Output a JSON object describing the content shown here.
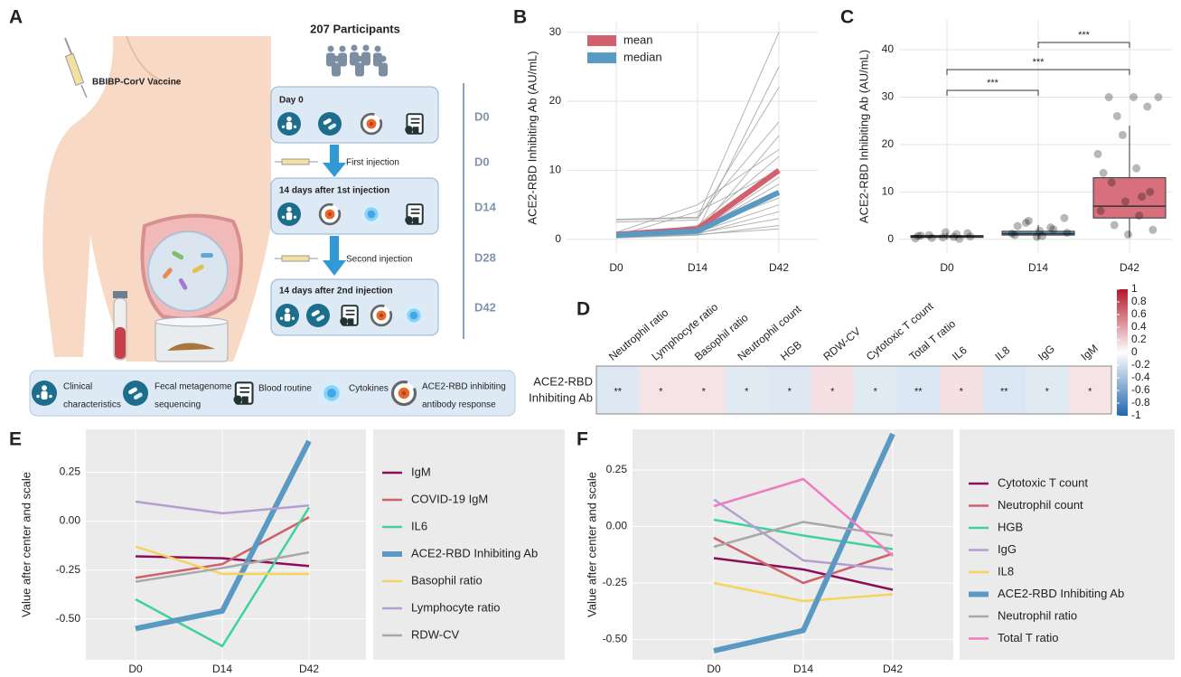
{
  "panel_labels": [
    "A",
    "B",
    "C",
    "D",
    "E",
    "F"
  ],
  "diagram": {
    "vaccine": "BBIBP-CorV Vaccine",
    "participants": "207 Participants",
    "steps": [
      "Day 0",
      "14 days after 1st injection",
      "14 days after 2nd injection"
    ],
    "injections": [
      "First injection",
      "Second injection"
    ],
    "timeline": [
      "D0",
      "D0",
      "D14",
      "D28",
      "D42"
    ],
    "legend": [
      [
        "Clinical",
        "characteristics"
      ],
      [
        "Fecal metagenome",
        "sequencing"
      ],
      [
        "Blood routine"
      ],
      [
        "Cytokines"
      ],
      [
        "ACE2-RBD inhibiting",
        "antibody response"
      ]
    ]
  },
  "chart_data": [
    {
      "type": "line",
      "ylabel": "ACE2-RBD Inhibiting Ab (AU/mL)",
      "categories": [
        "D0",
        "D14",
        "D42"
      ],
      "ylim": [
        -2,
        31.4
      ],
      "yticks": [
        0,
        10,
        20,
        30
      ],
      "grid": true,
      "legend": "top-left",
      "series": [
        {
          "color": "#a0a0a0",
          "width": 1,
          "values": [
            2.8,
            3.1,
            30
          ]
        },
        {
          "color": "#a0a0a0",
          "width": 1,
          "values": [
            2.5,
            2.8,
            22
          ]
        },
        {
          "color": "#a0a0a0",
          "width": 1,
          "values": [
            0.5,
            1,
            15
          ]
        },
        {
          "color": "#a0a0a0",
          "width": 1,
          "values": [
            0.3,
            0.8,
            4
          ]
        },
        {
          "color": "#a0a0a0",
          "width": 1,
          "values": [
            0.6,
            1.2,
            8
          ]
        },
        {
          "color": "#a0a0a0",
          "width": 1,
          "values": [
            0.4,
            2,
            12
          ]
        },
        {
          "color": "#a0a0a0",
          "width": 1,
          "values": [
            0.8,
            1.5,
            6
          ]
        },
        {
          "color": "#a0a0a0",
          "width": 1,
          "values": [
            0.2,
            0.6,
            2
          ]
        },
        {
          "color": "#a0a0a0",
          "width": 1,
          "values": [
            2.9,
            3.2,
            17
          ]
        },
        {
          "color": "#a0a0a0",
          "width": 1,
          "values": [
            0.5,
            4,
            10
          ]
        },
        {
          "color": "#a0a0a0",
          "width": 1,
          "values": [
            0.3,
            1,
            5
          ]
        },
        {
          "color": "#a0a0a0",
          "width": 1,
          "values": [
            0.6,
            1.4,
            25
          ]
        },
        {
          "color": "#a0a0a0",
          "width": 1,
          "values": [
            0.4,
            0.9,
            3
          ]
        },
        {
          "color": "#a0a0a0",
          "width": 1,
          "values": [
            1,
            5,
            13
          ]
        },
        {
          "color": "#a0a0a0",
          "width": 1,
          "values": [
            0.5,
            1.1,
            9
          ]
        },
        {
          "color": "#a0a0a0",
          "width": 1,
          "values": [
            0.3,
            0.7,
            1.5
          ]
        },
        {
          "name": "mean",
          "color": "#d45f6e",
          "width": 6,
          "values": [
            0.7,
            1.5,
            10
          ]
        },
        {
          "name": "median",
          "color": "#5a9ac2",
          "width": 6,
          "values": [
            0.6,
            1.2,
            6.8
          ]
        }
      ]
    },
    {
      "type": "box",
      "ylabel": "ACE2-RBD Inhibiting Ab (AU/mL)",
      "categories": [
        "D0",
        "D14",
        "D42"
      ],
      "ylim": [
        -2.9,
        46.3
      ],
      "yticks": [
        0,
        10,
        20,
        30,
        40
      ],
      "grid": true,
      "colors": [
        "#6e6e6e",
        "#5a9ac2",
        "#d45f6e"
      ],
      "boxes": [
        {
          "whisker_low": 0,
          "q1": 0.4,
          "median": 0.6,
          "q3": 0.8,
          "whisker_high": 1.4,
          "points": [
            0.2,
            0.5,
            0.9,
            1.3,
            0.4,
            0.7,
            1.1,
            0.3,
            0.6,
            1.5,
            0.8,
            0.1
          ]
        },
        {
          "whisker_low": 0,
          "q1": 0.9,
          "median": 1.2,
          "q3": 1.7,
          "whisker_high": 3,
          "points": [
            0.5,
            1.2,
            2.5,
            3.5,
            4.5,
            1.8,
            0.9,
            2.1,
            3.9,
            1.4,
            0.7,
            2.8
          ]
        },
        {
          "whisker_low": 0.5,
          "q1": 4.5,
          "median": 7,
          "q3": 13,
          "whisker_high": 24,
          "points": [
            30,
            30,
            30,
            28,
            22,
            18,
            15,
            12,
            10,
            8,
            6,
            5,
            3,
            2,
            1,
            14,
            9,
            26
          ]
        }
      ],
      "annotations": [
        {
          "text": "***",
          "groups": [
            "D0",
            "D14"
          ]
        },
        {
          "text": "***",
          "groups": [
            "D0",
            "D42"
          ]
        },
        {
          "text": "***",
          "groups": [
            "D14",
            "D42"
          ]
        }
      ]
    },
    {
      "type": "heatmap",
      "columns": [
        "Neutrophil ratio",
        "Lymphocyte ratio",
        "Basophil ratio",
        "Neutrophil count",
        "HGB",
        "RDW-CV",
        "Cytotoxic T count",
        "Total T ratio",
        "IL6",
        "IL8",
        "IgG",
        "IgM"
      ],
      "rows": [
        [
          "ACE2-RBD",
          "Inhibiting Ab"
        ]
      ],
      "values": [
        [
          -0.15,
          0.12,
          0.12,
          -0.14,
          -0.15,
          0.13,
          -0.14,
          -0.16,
          0.13,
          -0.16,
          -0.14,
          0.12
        ]
      ],
      "significance": [
        [
          "**",
          "*",
          "*",
          "*",
          "*",
          "*",
          "*",
          "**",
          "*",
          "**",
          "*",
          "*"
        ]
      ],
      "clim": [
        -1,
        1
      ],
      "cticks": [
        1,
        0.8,
        0.6,
        0.4,
        0.2,
        0,
        -0.2,
        -0.4,
        -0.6,
        -0.8,
        -1
      ],
      "colors": [
        "#2166ac",
        "#ffffff",
        "#b2182b"
      ]
    },
    {
      "type": "line",
      "ylabel": "Value after center and scale",
      "categories": [
        "D0",
        "D14",
        "D42"
      ],
      "ylim": [
        -0.71,
        0.47
      ],
      "yticks": [
        {
          "value": -0.5,
          "label": "-0.50"
        },
        {
          "value": -0.25,
          "label": "-0.25"
        },
        {
          "value": 0,
          "label": "0.00"
        },
        {
          "value": 0.25,
          "label": "0.25"
        }
      ],
      "grid": true,
      "legend": "right",
      "series": [
        {
          "name": "IgM",
          "color": "#8b0e5a",
          "width": 2.5,
          "values": [
            -0.18,
            -0.19,
            -0.23
          ]
        },
        {
          "name": "COVID-19 IgM",
          "color": "#d0606a",
          "width": 2.5,
          "values": [
            -0.29,
            -0.22,
            0.02
          ]
        },
        {
          "name": "IL6",
          "color": "#3fd39a",
          "width": 2.5,
          "values": [
            -0.4,
            -0.64,
            0.07
          ]
        },
        {
          "name": "ACE2-RBD Inhibiting Ab",
          "color": "#5a9ac2",
          "width": 6,
          "values": [
            -0.55,
            -0.46,
            0.41
          ]
        },
        {
          "name": "Basophil ratio",
          "color": "#f4d35e",
          "width": 2.5,
          "values": [
            -0.13,
            -0.27,
            -0.27
          ]
        },
        {
          "name": "Lymphocyte ratio",
          "color": "#b59fd1",
          "width": 2.5,
          "values": [
            0.1,
            0.04,
            0.08
          ]
        },
        {
          "name": "RDW-CV",
          "color": "#a8a8a8",
          "width": 2.5,
          "values": [
            -0.31,
            -0.24,
            -0.16
          ]
        }
      ]
    },
    {
      "type": "line",
      "ylabel": "Value after center and scale",
      "categories": [
        "D0",
        "D14",
        "D42"
      ],
      "ylim": [
        -0.59,
        0.43
      ],
      "yticks": [
        {
          "value": -0.5,
          "label": "-0.50"
        },
        {
          "value": -0.25,
          "label": "-0.25"
        },
        {
          "value": 0,
          "label": "0.00"
        },
        {
          "value": 0.25,
          "label": "0.25"
        }
      ],
      "grid": true,
      "legend": "right",
      "series": [
        {
          "name": "Cytotoxic T count",
          "color": "#8b0e5a",
          "width": 2.5,
          "values": [
            -0.14,
            -0.19,
            -0.28
          ]
        },
        {
          "name": "Neutrophil count",
          "color": "#d0606a",
          "width": 2.5,
          "values": [
            -0.05,
            -0.25,
            -0.12
          ]
        },
        {
          "name": "HGB",
          "color": "#3fd39a",
          "width": 2.5,
          "values": [
            0.03,
            -0.04,
            -0.1
          ]
        },
        {
          "name": "IgG",
          "color": "#b59fd1",
          "width": 2.5,
          "values": [
            0.12,
            -0.15,
            -0.19
          ]
        },
        {
          "name": "IL8",
          "color": "#f4d35e",
          "width": 2.5,
          "values": [
            -0.25,
            -0.33,
            -0.3
          ]
        },
        {
          "name": "ACE2-RBD Inhibiting Ab",
          "color": "#5a9ac2",
          "width": 6,
          "values": [
            -0.55,
            -0.46,
            0.41
          ]
        },
        {
          "name": "Neutrophil ratio",
          "color": "#a8a8a8",
          "width": 2.5,
          "values": [
            -0.09,
            0.02,
            -0.04
          ]
        },
        {
          "name": "Total T ratio",
          "color": "#f07cc0",
          "width": 2.5,
          "values": [
            0.09,
            0.21,
            -0.13
          ]
        }
      ]
    }
  ]
}
